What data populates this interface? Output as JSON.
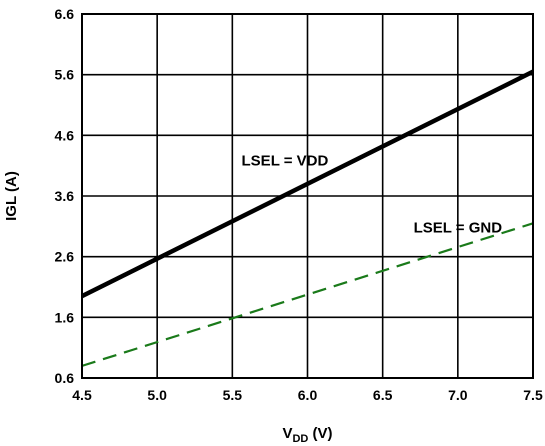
{
  "chart_data": {
    "type": "line",
    "xlabel": "V",
    "xlabel_sub": "DD",
    "xlabel_unit": " (V)",
    "ylabel": "IGL (A)",
    "xlim": [
      4.5,
      7.5
    ],
    "ylim": [
      0.6,
      6.6
    ],
    "xticks": [
      "4.5",
      "5.0",
      "5.5",
      "6.0",
      "6.5",
      "7.0",
      "7.5"
    ],
    "yticks": [
      "0.6",
      "1.6",
      "2.6",
      "3.6",
      "4.6",
      "5.6",
      "6.6"
    ],
    "grid": true,
    "series": [
      {
        "name": "LSEL = VDD",
        "color": "#000000",
        "style": "solid",
        "x": [
          4.5,
          7.5
        ],
        "y": [
          1.95,
          5.65
        ]
      },
      {
        "name": "LSEL = GND",
        "color": "#1a7a1a",
        "style": "dashed",
        "x": [
          4.5,
          7.5
        ],
        "y": [
          0.8,
          3.15
        ]
      }
    ],
    "annotations": [
      {
        "text": "LSEL = VDD",
        "x": 5.85,
        "y": 4.1
      },
      {
        "text": "LSEL = GND",
        "x": 7.0,
        "y": 3.0
      }
    ]
  }
}
